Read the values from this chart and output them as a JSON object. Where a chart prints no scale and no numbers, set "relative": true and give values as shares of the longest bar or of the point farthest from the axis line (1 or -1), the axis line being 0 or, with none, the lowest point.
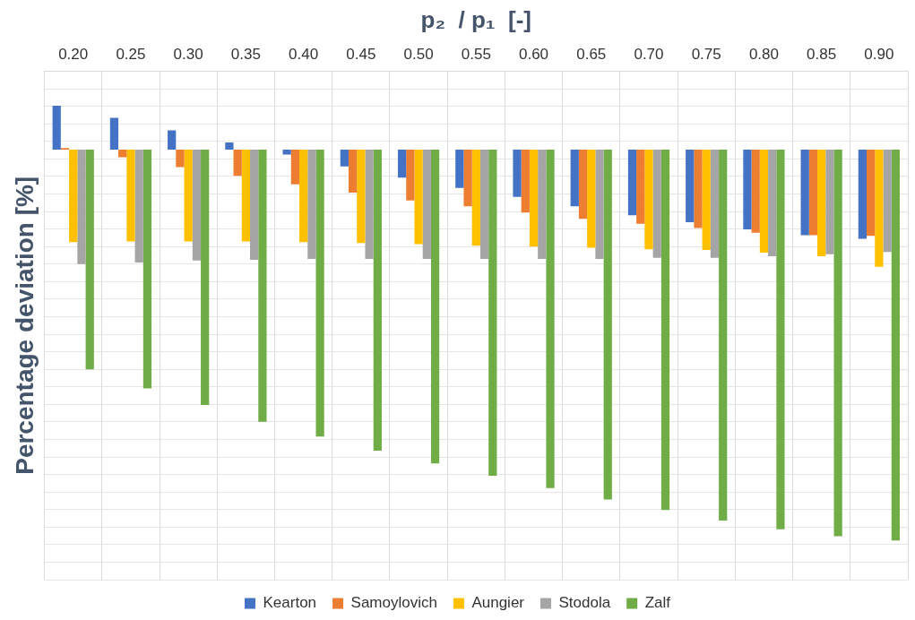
{
  "chart_data": {
    "type": "bar",
    "relative": true,
    "xlabel": "p₂  / p₁  [-]",
    "ylabel": "Percentage deviation [%]",
    "categories": [
      "0.20",
      "0.25",
      "0.30",
      "0.35",
      "0.40",
      "0.45",
      "0.50",
      "0.55",
      "0.60",
      "0.65",
      "0.70",
      "0.75",
      "0.80",
      "0.85",
      "0.90"
    ],
    "series": [
      {
        "name": "Kearton",
        "color": "#4472c4",
        "values": [
          0.112,
          0.081,
          0.049,
          0.018,
          -0.013,
          -0.043,
          -0.072,
          -0.098,
          -0.121,
          -0.145,
          -0.168,
          -0.186,
          -0.204,
          -0.219,
          -0.228
        ]
      },
      {
        "name": "Samoylovich",
        "color": "#ed7d31",
        "values": [
          0.004,
          -0.02,
          -0.045,
          -0.067,
          -0.089,
          -0.11,
          -0.13,
          -0.145,
          -0.161,
          -0.177,
          -0.19,
          -0.201,
          -0.213,
          -0.219,
          -0.221
        ]
      },
      {
        "name": "Aungier",
        "color": "#ffc000",
        "values": [
          -0.237,
          -0.235,
          -0.235,
          -0.235,
          -0.237,
          -0.239,
          -0.242,
          -0.246,
          -0.248,
          -0.251,
          -0.255,
          -0.257,
          -0.264,
          -0.273,
          -0.3
        ]
      },
      {
        "name": "Stodola",
        "color": "#a5a5a5",
        "values": [
          -0.293,
          -0.289,
          -0.284,
          -0.282,
          -0.28,
          -0.28,
          -0.28,
          -0.28,
          -0.28,
          -0.28,
          -0.277,
          -0.277,
          -0.273,
          -0.268,
          -0.262
        ]
      },
      {
        "name": "Zalf",
        "color": "#70ad47",
        "values": [
          -0.562,
          -0.611,
          -0.653,
          -0.696,
          -0.734,
          -0.77,
          -0.803,
          -0.834,
          -0.866,
          -0.895,
          -0.922,
          -0.949,
          -0.971,
          -0.989,
          -1
        ]
      }
    ],
    "grid": true,
    "legend": "bottom"
  }
}
